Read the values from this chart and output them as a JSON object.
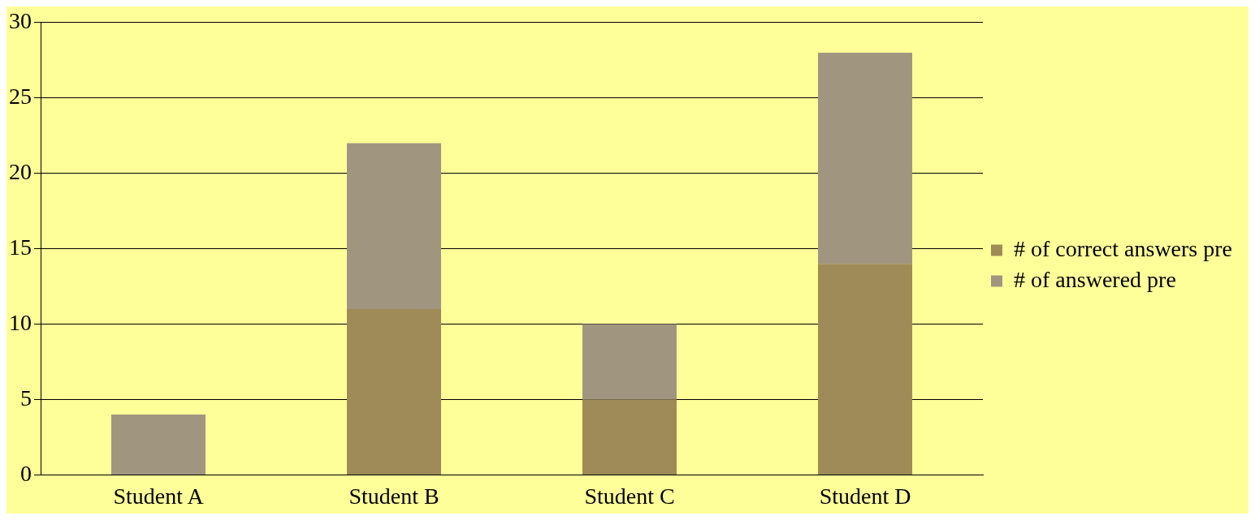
{
  "chart_data": {
    "type": "bar",
    "stacked": true,
    "categories": [
      "Student A",
      "Student B",
      "Student C",
      "Student D"
    ],
    "series": [
      {
        "name": "# of correct answers pre",
        "color": "#9e8b58",
        "values": [
          0,
          11,
          5,
          14
        ]
      },
      {
        "name": "# of answered pre",
        "color": "#a09680",
        "values": [
          4,
          11,
          5,
          14
        ]
      }
    ],
    "ylim": [
      0,
      30
    ],
    "yticks": [
      0,
      5,
      10,
      15,
      20,
      25,
      30
    ],
    "grid": "y",
    "legend": "right"
  }
}
